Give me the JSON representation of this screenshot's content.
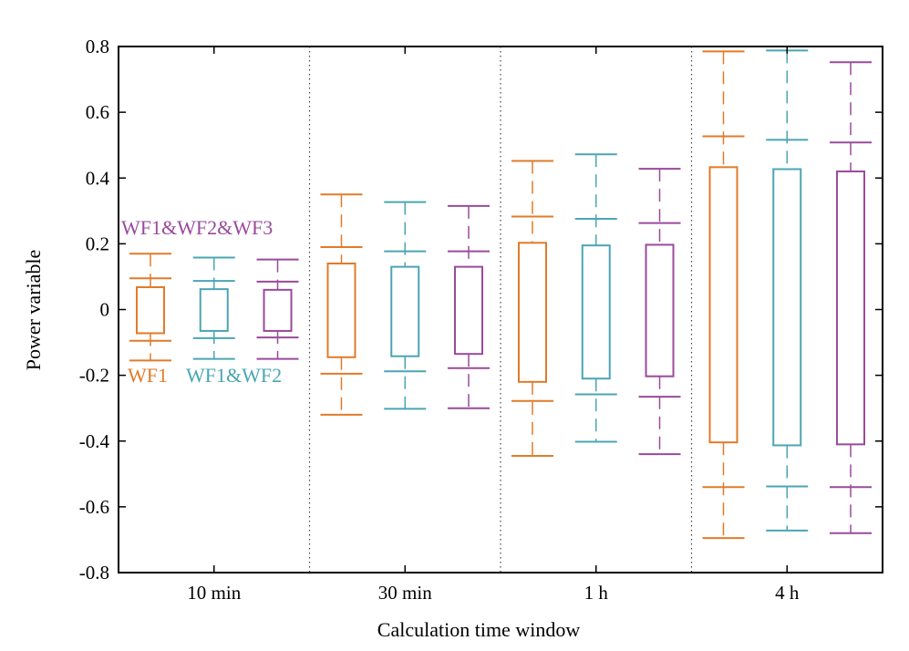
{
  "chart_data": {
    "type": "box",
    "xlabel": "Calculation time window",
    "ylabel": "Power variable",
    "ylim": [
      -0.8,
      0.8
    ],
    "yticks": [
      "-0.8",
      "-0.6",
      "-0.4",
      "-0.2",
      "0",
      "0.2",
      "0.4",
      "0.6",
      "0.8"
    ],
    "categories": [
      "10 min",
      "30 min",
      "1 h",
      "4 h"
    ],
    "grid": false,
    "group_separators": "dotted",
    "series": [
      {
        "name": "WF1",
        "color": "#E07B2A",
        "boxes": [
          {
            "cap_top": 0.17,
            "whisker_top": 0.095,
            "q3": 0.068,
            "q1": -0.072,
            "whisker_bottom": -0.095,
            "cap_bottom": -0.155
          },
          {
            "cap_top": 0.35,
            "whisker_top": 0.19,
            "q3": 0.14,
            "q1": -0.145,
            "whisker_bottom": -0.195,
            "cap_bottom": -0.32
          },
          {
            "cap_top": 0.452,
            "whisker_top": 0.283,
            "q3": 0.203,
            "q1": -0.22,
            "whisker_bottom": -0.278,
            "cap_bottom": -0.445
          },
          {
            "cap_top": 0.785,
            "whisker_top": 0.527,
            "q3": 0.433,
            "q1": -0.404,
            "whisker_bottom": -0.54,
            "cap_bottom": -0.695
          }
        ]
      },
      {
        "name": "WF1&WF2",
        "color": "#4BA5B3",
        "boxes": [
          {
            "cap_top": 0.158,
            "whisker_top": 0.087,
            "q3": 0.062,
            "q1": -0.065,
            "whisker_bottom": -0.087,
            "cap_bottom": -0.15
          },
          {
            "cap_top": 0.327,
            "whisker_top": 0.177,
            "q3": 0.13,
            "q1": -0.142,
            "whisker_bottom": -0.188,
            "cap_bottom": -0.302
          },
          {
            "cap_top": 0.472,
            "whisker_top": 0.276,
            "q3": 0.195,
            "q1": -0.21,
            "whisker_bottom": -0.258,
            "cap_bottom": -0.402
          },
          {
            "cap_top": 0.788,
            "whisker_top": 0.516,
            "q3": 0.427,
            "q1": -0.413,
            "whisker_bottom": -0.538,
            "cap_bottom": -0.672
          }
        ]
      },
      {
        "name": "WF1&WF2&WF3",
        "color": "#9A4A9C",
        "boxes": [
          {
            "cap_top": 0.152,
            "whisker_top": 0.085,
            "q3": 0.06,
            "q1": -0.065,
            "whisker_bottom": -0.085,
            "cap_bottom": -0.15
          },
          {
            "cap_top": 0.315,
            "whisker_top": 0.177,
            "q3": 0.13,
            "q1": -0.135,
            "whisker_bottom": -0.178,
            "cap_bottom": -0.3
          },
          {
            "cap_top": 0.428,
            "whisker_top": 0.263,
            "q3": 0.197,
            "q1": -0.203,
            "whisker_bottom": -0.265,
            "cap_bottom": -0.44
          },
          {
            "cap_top": 0.752,
            "whisker_top": 0.508,
            "q3": 0.42,
            "q1": -0.41,
            "whisker_bottom": -0.54,
            "cap_bottom": -0.68
          }
        ]
      }
    ]
  }
}
